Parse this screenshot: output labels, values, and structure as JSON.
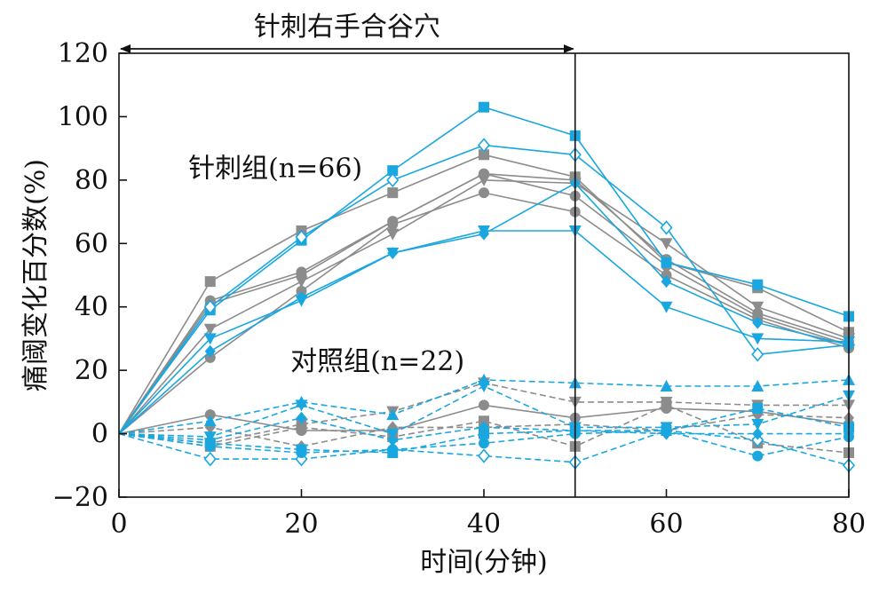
{
  "chart_data": {
    "type": "line",
    "title": "",
    "xlabel": "时间(分钟)",
    "ylabel": "痛阈变化百分数(%)",
    "xlim": [
      0,
      80
    ],
    "ylim": [
      -20,
      120
    ],
    "xticks": [
      0,
      20,
      40,
      60,
      80
    ],
    "yticks": [
      -20,
      0,
      20,
      40,
      60,
      80,
      100,
      120
    ],
    "grid": false,
    "colors": {
      "group_a": "#8c8c8c",
      "group_b": "#1aa7e0",
      "axis": "#111111"
    },
    "x": [
      0,
      10,
      20,
      30,
      40,
      50,
      60,
      70,
      80
    ],
    "annotations": {
      "stimulus": {
        "label": "针刺右手合谷穴",
        "x_start": 0,
        "x_end": 50
      },
      "acupuncture_group": "针刺组(n=66)",
      "control_group": "对照组(n=22)"
    },
    "series": [
      {
        "group": "acupuncture",
        "color": "group_a",
        "marker": "square",
        "dashed": false,
        "values": [
          0,
          48,
          64,
          76,
          88,
          81,
          54,
          46,
          32
        ]
      },
      {
        "group": "acupuncture",
        "color": "group_a",
        "marker": "circle",
        "dashed": false,
        "values": [
          0,
          42,
          51,
          67,
          82,
          80,
          55,
          38,
          29
        ]
      },
      {
        "group": "acupuncture",
        "color": "group_a",
        "marker": "triangle-down",
        "dashed": false,
        "values": [
          0,
          33,
          48,
          63,
          80,
          79,
          60,
          40,
          30
        ]
      },
      {
        "group": "acupuncture",
        "color": "group_a",
        "marker": "circle",
        "dashed": false,
        "values": [
          0,
          24,
          45,
          66,
          76,
          70,
          50,
          36,
          27
        ]
      },
      {
        "group": "acupuncture",
        "color": "group_a",
        "marker": "circle",
        "dashed": false,
        "values": [
          0,
          41,
          50,
          67,
          82,
          75,
          53,
          37,
          28
        ]
      },
      {
        "group": "acupuncture",
        "color": "group_b",
        "marker": "square",
        "dashed": false,
        "values": [
          0,
          39,
          61,
          83,
          103,
          94,
          54,
          47,
          37
        ]
      },
      {
        "group": "acupuncture",
        "color": "group_b",
        "marker": "diamond-open",
        "dashed": false,
        "values": [
          0,
          40,
          62,
          80,
          91,
          88,
          65,
          25,
          28
        ]
      },
      {
        "group": "acupuncture",
        "color": "group_b",
        "marker": "triangle-down",
        "dashed": false,
        "values": [
          0,
          30,
          42,
          57,
          64,
          64,
          40,
          30,
          29
        ]
      },
      {
        "group": "acupuncture",
        "color": "group_b",
        "marker": "diamond",
        "dashed": false,
        "values": [
          0,
          26,
          43,
          57,
          63,
          79,
          48,
          35,
          28
        ]
      },
      {
        "group": "control",
        "color": "group_a",
        "marker": "circle",
        "dashed": false,
        "values": [
          0,
          6,
          1,
          1,
          9,
          5,
          8,
          7,
          3
        ]
      },
      {
        "group": "control",
        "color": "group_a",
        "marker": "triangle-down",
        "dashed": true,
        "values": [
          0,
          -3,
          3,
          7,
          16,
          10,
          10,
          9,
          9
        ]
      },
      {
        "group": "control",
        "color": "group_a",
        "marker": "square",
        "dashed": true,
        "values": [
          0,
          -4,
          2,
          -1,
          4,
          -4,
          9,
          -3,
          -6
        ]
      },
      {
        "group": "control",
        "color": "group_a",
        "marker": "diamond",
        "dashed": true,
        "values": [
          0,
          2,
          -4,
          2,
          2,
          3,
          1,
          6,
          5
        ]
      },
      {
        "group": "control",
        "color": "group_b",
        "marker": "triangle",
        "dashed": true,
        "values": [
          0,
          4,
          10,
          6,
          17,
          16,
          15,
          15,
          17
        ]
      },
      {
        "group": "control",
        "color": "group_b",
        "marker": "triangle-down",
        "dashed": true,
        "values": [
          0,
          -1,
          9,
          0,
          15,
          2,
          2,
          3,
          12
        ]
      },
      {
        "group": "control",
        "color": "group_b",
        "marker": "square",
        "dashed": true,
        "values": [
          0,
          -3,
          -5,
          -6,
          0,
          1,
          1,
          8,
          2
        ]
      },
      {
        "group": "control",
        "color": "group_b",
        "marker": "diamond-open",
        "dashed": true,
        "values": [
          0,
          -8,
          -8,
          -5,
          -7,
          -9,
          1,
          -2,
          -10
        ]
      },
      {
        "group": "control",
        "color": "group_b",
        "marker": "circle",
        "dashed": true,
        "values": [
          0,
          -4,
          -6,
          -5,
          -3,
          0,
          1,
          -7,
          -1
        ]
      },
      {
        "group": "control",
        "color": "group_b",
        "marker": "diamond",
        "dashed": true,
        "values": [
          0,
          -2,
          5,
          -2,
          2,
          1,
          0,
          0,
          0
        ]
      }
    ]
  }
}
